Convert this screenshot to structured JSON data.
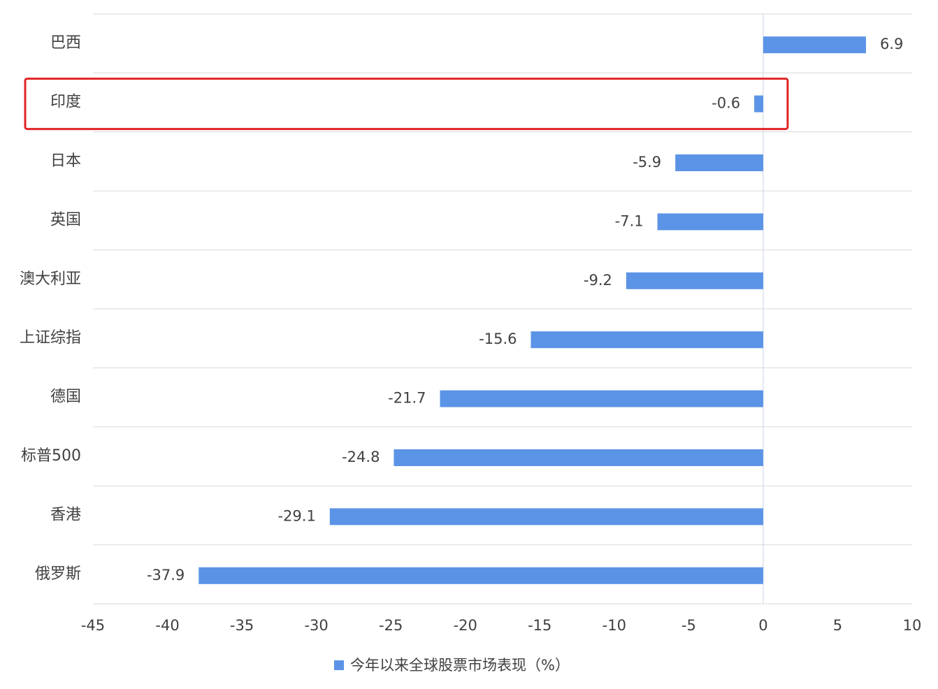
{
  "chart_data": {
    "type": "bar",
    "orientation": "horizontal",
    "categories": [
      "巴西",
      "印度",
      "日本",
      "英国",
      "澳大利亚",
      "上证综指",
      "德国",
      "标普500",
      "香港",
      "俄罗斯"
    ],
    "series": [
      {
        "name": "今年以来全球股票市场表现（%）",
        "values": [
          6.9,
          -0.6,
          -5.9,
          -7.1,
          -9.2,
          -15.6,
          -21.7,
          -24.8,
          -29.1,
          -37.9
        ]
      }
    ],
    "value_labels": [
      "6.9",
      "-0.6",
      "-5.9",
      "-7.1",
      "-9.2",
      "-15.6",
      "-21.7",
      "-24.8",
      "-29.1",
      "-37.9"
    ],
    "xlim": [
      -45,
      10
    ],
    "xticks": [
      "-45",
      "-40",
      "-35",
      "-30",
      "-25",
      "-20",
      "-15",
      "-10",
      "-5",
      "0",
      "5",
      "10"
    ],
    "xtick_values": [
      -45,
      -40,
      -35,
      -30,
      -25,
      -20,
      -15,
      -10,
      -5,
      0,
      5,
      10
    ],
    "title": "",
    "xlabel": "",
    "ylabel": "",
    "grid": "horizontal category separators",
    "legend": {
      "placement": "bottom-center"
    },
    "highlighted_category": "印度"
  },
  "colors": {
    "bar": "#5B93E6",
    "grid": "#D9D9D9",
    "zero_line": "#C9D3E6",
    "text": "#404040",
    "highlight": "#E02424",
    "background": "#FFFFFF"
  }
}
